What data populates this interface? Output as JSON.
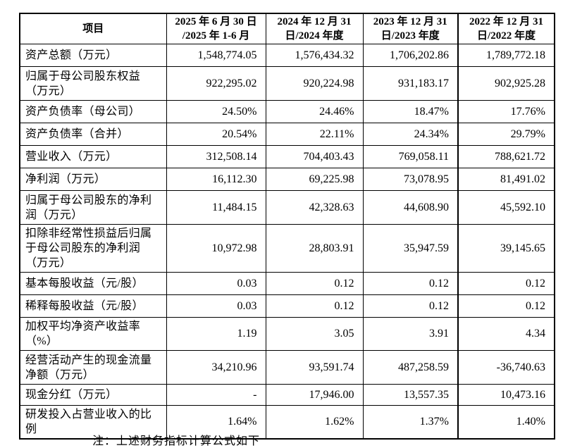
{
  "table": {
    "header": {
      "item_label": "项目",
      "periods": [
        {
          "line1": "2025 年 6 月 30 日",
          "line2": "/2025 年 1-6 月"
        },
        {
          "line1": "2024 年 12 月 31",
          "line2": "日/2024 年度"
        },
        {
          "line1": "2023 年 12 月 31",
          "line2": "日/2023 年度"
        },
        {
          "line1": "2022 年 12 月 31",
          "line2": "日/2022 年度"
        }
      ]
    },
    "rows": [
      {
        "label": "资产总额（万元）",
        "values": [
          "1,548,774.05",
          "1,576,434.32",
          "1,706,202.86",
          "1,789,772.18"
        ]
      },
      {
        "label": "归属于母公司股东权益（万元）",
        "values": [
          "922,295.02",
          "920,224.98",
          "931,183.17",
          "902,925.28"
        ]
      },
      {
        "label": "资产负债率（母公司）",
        "values": [
          "24.50%",
          "24.46%",
          "18.47%",
          "17.76%"
        ]
      },
      {
        "label": "资产负债率（合并）",
        "values": [
          "20.54%",
          "22.11%",
          "24.34%",
          "29.79%"
        ]
      },
      {
        "label": "营业收入（万元）",
        "values": [
          "312,508.14",
          "704,403.43",
          "769,058.11",
          "788,621.72"
        ]
      },
      {
        "label": "净利润（万元）",
        "values": [
          "16,112.30",
          "69,225.98",
          "73,078.95",
          "81,491.02"
        ]
      },
      {
        "label": "归属于母公司股东的净利润（万元）",
        "values": [
          "11,484.15",
          "42,328.63",
          "44,608.90",
          "45,592.10"
        ]
      },
      {
        "label": "扣除非经常性损益后归属于母公司股东的净利润（万元）",
        "values": [
          "10,972.98",
          "28,803.91",
          "35,947.59",
          "39,145.65"
        ]
      },
      {
        "label": "基本每股收益（元/股）",
        "values": [
          "0.03",
          "0.12",
          "0.12",
          "0.12"
        ]
      },
      {
        "label": "稀释每股收益（元/股）",
        "values": [
          "0.03",
          "0.12",
          "0.12",
          "0.12"
        ]
      },
      {
        "label": "加权平均净资产收益率（%）",
        "values": [
          "1.19",
          "3.05",
          "3.91",
          "4.34"
        ]
      },
      {
        "label": "经营活动产生的现金流量净额（万元）",
        "values": [
          "34,210.96",
          "93,591.74",
          "487,258.59",
          "-36,740.63"
        ]
      },
      {
        "label": "现金分红（万元）",
        "values": [
          "-",
          "17,946.00",
          "13,557.35",
          "10,473.16"
        ]
      },
      {
        "label": "研发投入占营业收入的比例",
        "values": [
          "1.64%",
          "1.62%",
          "1.37%",
          "1.40%"
        ]
      }
    ]
  },
  "footnote_clipped": "注：上述财务指标计算公式如下"
}
